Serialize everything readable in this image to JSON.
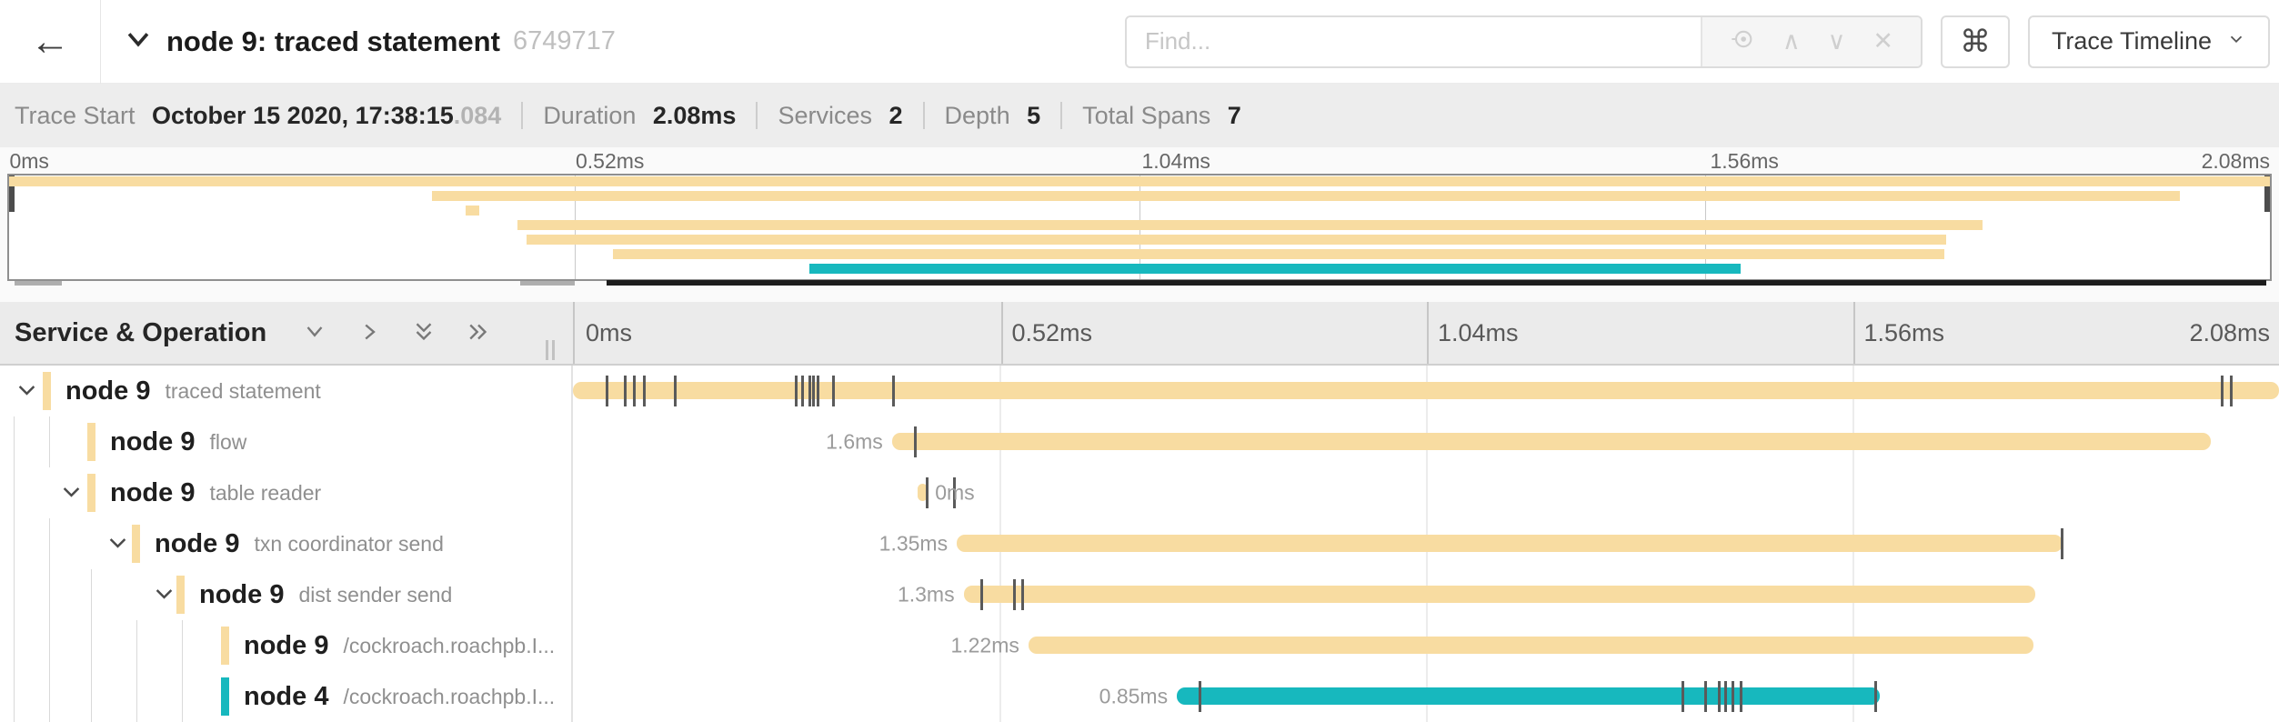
{
  "topbar": {
    "back_glyph": "←",
    "title": "node 9: traced statement",
    "trace_id": "6749717",
    "find_placeholder": "Find...",
    "find_extras": {
      "prev_glyph": "∧",
      "next_glyph": "∨",
      "close_glyph": "✕"
    },
    "cmd_glyph": "⌘",
    "view_selector_label": "Trace Timeline"
  },
  "summary": {
    "items": [
      {
        "label": "Trace Start",
        "value": "October 15 2020, 17:38:15",
        "suffix": ".084"
      },
      {
        "label": "Duration",
        "value": "2.08ms",
        "suffix": ""
      },
      {
        "label": "Services",
        "value": "2",
        "suffix": ""
      },
      {
        "label": "Depth",
        "value": "5",
        "suffix": ""
      },
      {
        "label": "Total Spans",
        "value": "7",
        "suffix": ""
      }
    ]
  },
  "timeline": {
    "axis_ticks": [
      "0ms",
      "0.52ms",
      "1.04ms",
      "1.56ms",
      "2.08ms"
    ],
    "header_title": "Service & Operation",
    "total_duration": "2.08ms"
  },
  "colors": {
    "tan": "#F8DCA1",
    "teal": "#17B8BE",
    "tick": "#5a5a5a"
  },
  "spans": [
    {
      "service": "node 9",
      "operation": "traced statement",
      "depth": 0,
      "expandable": true,
      "color": "tan",
      "start_pct": 0,
      "width_pct": 100,
      "duration_label": "",
      "label_side": "none",
      "ticks_pct": [
        1.9,
        3.0,
        3.5,
        4.1,
        5.9,
        13.0,
        13.4,
        13.8,
        14.0,
        14.3,
        15.2,
        18.7,
        96.6,
        97.1
      ]
    },
    {
      "service": "node 9",
      "operation": "flow",
      "depth": 1,
      "expandable": false,
      "color": "tan",
      "start_pct": 18.7,
      "width_pct": 77.3,
      "duration_label": "1.6ms",
      "label_side": "left",
      "ticks_pct": [
        20.0
      ]
    },
    {
      "service": "node 9",
      "operation": "table reader",
      "depth": 1,
      "expandable": true,
      "color": "tan",
      "start_pct": 20.2,
      "width_pct": 0.6,
      "duration_label": "0ms",
      "label_side": "right",
      "ticks_pct": [
        20.7,
        22.3
      ]
    },
    {
      "service": "node 9",
      "operation": "txn coordinator send",
      "depth": 2,
      "expandable": true,
      "color": "tan",
      "start_pct": 22.5,
      "width_pct": 64.8,
      "duration_label": "1.35ms",
      "label_side": "left",
      "ticks_pct": [
        87.2
      ]
    },
    {
      "service": "node 9",
      "operation": "dist sender send",
      "depth": 3,
      "expandable": true,
      "color": "tan",
      "start_pct": 22.9,
      "width_pct": 62.8,
      "duration_label": "1.3ms",
      "label_side": "left",
      "ticks_pct": [
        23.9,
        25.8,
        26.3
      ]
    },
    {
      "service": "node 9",
      "operation": "/cockroach.roachpb.I...",
      "depth": 4,
      "expandable": false,
      "color": "tan",
      "start_pct": 26.7,
      "width_pct": 58.9,
      "duration_label": "1.22ms",
      "label_side": "left",
      "ticks_pct": []
    },
    {
      "service": "node 4",
      "operation": "/cockroach.roachpb.I...",
      "depth": 4,
      "expandable": false,
      "color": "teal",
      "start_pct": 35.4,
      "width_pct": 41.2,
      "duration_label": "0.85ms",
      "label_side": "left",
      "ticks_pct": [
        36.7,
        65.0,
        66.3,
        67.1,
        67.5,
        67.9,
        68.4,
        76.3
      ]
    }
  ]
}
